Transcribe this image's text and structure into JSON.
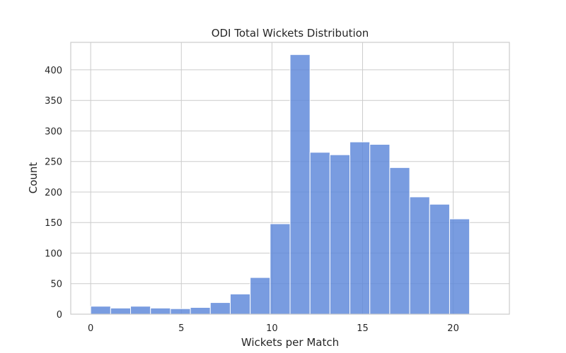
{
  "chart_data": {
    "type": "bar",
    "title": "ODI Total Wickets Distribution",
    "xlabel": "Wickets per Match",
    "ylabel": "Count",
    "xlim": [
      -1.1,
      23.1
    ],
    "ylim": [
      0,
      445
    ],
    "xticks": [
      0,
      5,
      10,
      15,
      20
    ],
    "yticks": [
      0,
      50,
      100,
      150,
      200,
      250,
      300,
      350,
      400
    ],
    "grid": true,
    "bar_color": "#5b86d9",
    "bins": [
      {
        "start": 0.0,
        "end": 1.1,
        "count": 13
      },
      {
        "start": 1.1,
        "end": 2.2,
        "count": 10
      },
      {
        "start": 2.2,
        "end": 3.3,
        "count": 13
      },
      {
        "start": 3.3,
        "end": 4.4,
        "count": 10
      },
      {
        "start": 4.4,
        "end": 5.5,
        "count": 9
      },
      {
        "start": 5.5,
        "end": 6.6,
        "count": 11
      },
      {
        "start": 6.6,
        "end": 7.7,
        "count": 19
      },
      {
        "start": 7.7,
        "end": 8.8,
        "count": 33
      },
      {
        "start": 8.8,
        "end": 9.9,
        "count": 60
      },
      {
        "start": 9.9,
        "end": 11.0,
        "count": 148
      },
      {
        "start": 11.0,
        "end": 12.1,
        "count": 425
      },
      {
        "start": 12.1,
        "end": 13.2,
        "count": 265
      },
      {
        "start": 13.2,
        "end": 14.3,
        "count": 261
      },
      {
        "start": 14.3,
        "end": 15.4,
        "count": 282
      },
      {
        "start": 15.4,
        "end": 16.5,
        "count": 278
      },
      {
        "start": 16.5,
        "end": 17.6,
        "count": 240
      },
      {
        "start": 17.6,
        "end": 18.7,
        "count": 192
      },
      {
        "start": 18.7,
        "end": 19.8,
        "count": 180
      },
      {
        "start": 19.8,
        "end": 20.9,
        "count": 156
      },
      {
        "start": 20.9,
        "end": 22.0,
        "count": 1
      }
    ]
  }
}
